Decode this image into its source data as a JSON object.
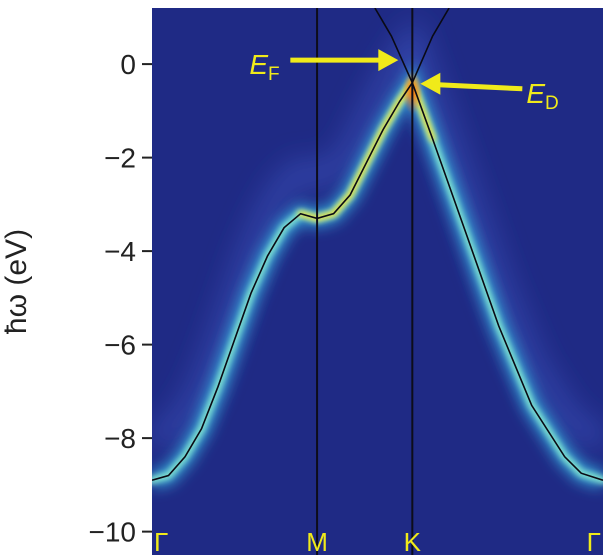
{
  "chart_data": {
    "type": "heatmap",
    "title": "",
    "xlabel": "",
    "ylabel": "ħω (eV)",
    "ylim": [
      -10.5,
      1.2
    ],
    "yticks": [
      0,
      -2,
      -4,
      -6,
      -8,
      -10
    ],
    "ytick_labels": [
      "0",
      "−2",
      "−4",
      "−6",
      "−8",
      "−10"
    ],
    "k_points": [
      {
        "label": "Γ",
        "k": 0.0
      },
      {
        "label": "M",
        "k": 1.0
      },
      {
        "label": "K",
        "k": 1.577
      },
      {
        "label": "Γ",
        "k": 2.732
      }
    ],
    "series": [
      {
        "style": "band-dispersion",
        "k": [
          0.0,
          0.1,
          0.2,
          0.3,
          0.4,
          0.5,
          0.6,
          0.7,
          0.8,
          0.9,
          1.0,
          1.1,
          1.2,
          1.3,
          1.4,
          1.5,
          1.577,
          1.7,
          1.9,
          2.1,
          2.3,
          2.5,
          2.6,
          2.732
        ],
        "energy": [
          -8.9,
          -8.8,
          -8.4,
          -7.8,
          -6.9,
          -5.9,
          -4.9,
          -4.1,
          -3.5,
          -3.2,
          -3.3,
          -3.2,
          -2.8,
          -2.1,
          -1.4,
          -0.8,
          -0.4,
          -1.6,
          -3.6,
          -5.6,
          -7.3,
          -8.4,
          -8.75,
          -8.9
        ]
      },
      {
        "style": "dirac-cone-upper",
        "k": [
          1.35,
          1.45,
          1.577,
          1.7,
          1.8
        ],
        "energy": [
          1.2,
          0.6,
          -0.4,
          0.6,
          1.2
        ]
      }
    ],
    "annotations": [
      {
        "label": "E",
        "sub": "F",
        "k": 1.577,
        "energy": 0.0
      },
      {
        "label": "E",
        "sub": "D",
        "k": 1.577,
        "energy": -0.4
      }
    ],
    "colors": {
      "background": "#1f2a85",
      "intensity_high": "#f2e23a",
      "band_line": "#0a0a14",
      "annotation": "#f0ea1a",
      "kpoint_label": "#f0ea1a"
    }
  }
}
